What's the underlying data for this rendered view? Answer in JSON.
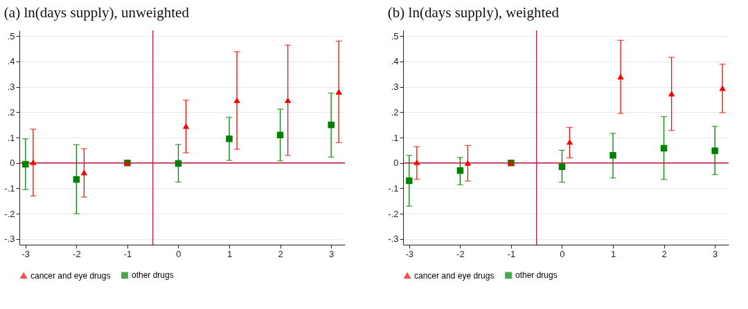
{
  "chart_data": [
    {
      "type": "scatter",
      "title": "(a) ln(days supply), unweighted",
      "xlim": [
        -3.12,
        3.27
      ],
      "ylim": [
        -0.322,
        0.522
      ],
      "xticks": [
        -3,
        -2,
        -1,
        0,
        1,
        2,
        3
      ],
      "yticks": [
        {
          "value": -0.3,
          "label": "-.3"
        },
        {
          "value": -0.2,
          "label": "-.2"
        },
        {
          "value": -0.1,
          "label": "-.1"
        },
        0,
        {
          "value": 0.1,
          "label": ".1"
        },
        {
          "value": 0.2,
          "label": ".2"
        },
        {
          "value": 0.3,
          "label": ".3"
        },
        {
          "value": 0.4,
          "label": ".4"
        },
        {
          "value": 0.5,
          "label": ".5"
        }
      ],
      "grid": "y",
      "legend": "bottom",
      "ref_lines": [
        {
          "axis": "x",
          "value": -0.5,
          "color": "#c8103c"
        },
        {
          "axis": "y",
          "value": 0,
          "color": "#c8103c"
        }
      ],
      "series": [
        {
          "name": "cancer and eye drugs",
          "color": "#ff0000",
          "marker": "triangle",
          "x": [
            -2.85,
            -1.85,
            -1,
            0.15,
            1.15,
            2.15,
            3.15
          ],
          "values": [
            0.003,
            -0.037,
            0,
            0.145,
            0.247,
            0.247,
            0.28
          ],
          "errors": [
            [
              -0.13,
              0.133
            ],
            [
              -0.134,
              0.056
            ],
            null,
            [
              0.04,
              0.247
            ],
            [
              0.054,
              0.438
            ],
            [
              0.03,
              0.464
            ],
            [
              0.08,
              0.48
            ]
          ]
        },
        {
          "name": "other drugs",
          "color": "#008000",
          "marker": "square",
          "x": [
            -3,
            -2,
            -1,
            0,
            1,
            2,
            3
          ],
          "values": [
            -0.005,
            -0.065,
            0,
            -0.002,
            0.095,
            0.11,
            0.15
          ],
          "errors": [
            [
              -0.105,
              0.095
            ],
            [
              -0.2,
              0.072
            ],
            null,
            [
              -0.075,
              0.073
            ],
            [
              0.01,
              0.18
            ],
            [
              0.008,
              0.212
            ],
            [
              0.023,
              0.275
            ]
          ]
        }
      ]
    },
    {
      "type": "scatter",
      "title": "(b) ln(days supply), weighted",
      "xlim": [
        -3.12,
        3.27
      ],
      "ylim": [
        -0.322,
        0.522
      ],
      "xticks": [
        -3,
        -2,
        -1,
        0,
        1,
        2,
        3
      ],
      "yticks": [
        {
          "value": -0.3,
          "label": "-.3"
        },
        {
          "value": -0.2,
          "label": "-.2"
        },
        {
          "value": -0.1,
          "label": "-.1"
        },
        0,
        {
          "value": 0.1,
          "label": ".1"
        },
        {
          "value": 0.2,
          "label": ".2"
        },
        {
          "value": 0.3,
          "label": ".3"
        },
        {
          "value": 0.4,
          "label": ".4"
        },
        {
          "value": 0.5,
          "label": ".5"
        }
      ],
      "grid": "y",
      "legend": "bottom",
      "ref_lines": [
        {
          "axis": "x",
          "value": -0.5,
          "color": "#c8103c"
        },
        {
          "axis": "y",
          "value": 0,
          "color": "#c8103c"
        }
      ],
      "series": [
        {
          "name": "cancer and eye drugs",
          "color": "#ff0000",
          "marker": "triangle",
          "x": [
            -2.85,
            -1.85,
            -1,
            0.15,
            1.15,
            2.15,
            3.15
          ],
          "values": [
            0.003,
            0,
            0,
            0.083,
            0.34,
            0.273,
            0.295
          ],
          "errors": [
            [
              -0.064,
              0.064
            ],
            [
              -0.071,
              0.069
            ],
            null,
            [
              0.02,
              0.14
            ],
            [
              0.195,
              0.483
            ],
            [
              0.128,
              0.416
            ],
            [
              0.198,
              0.389
            ]
          ]
        },
        {
          "name": "other drugs",
          "color": "#008000",
          "marker": "square",
          "x": [
            -3,
            -2,
            -1,
            0,
            1,
            2,
            3
          ],
          "values": [
            -0.07,
            -0.03,
            0,
            -0.015,
            0.03,
            0.058,
            0.048
          ],
          "errors": [
            [
              -0.17,
              0.03
            ],
            [
              -0.086,
              0.022
            ],
            null,
            [
              -0.076,
              0.05
            ],
            [
              -0.059,
              0.117
            ],
            [
              -0.065,
              0.183
            ],
            [
              -0.046,
              0.144
            ]
          ]
        }
      ]
    }
  ]
}
